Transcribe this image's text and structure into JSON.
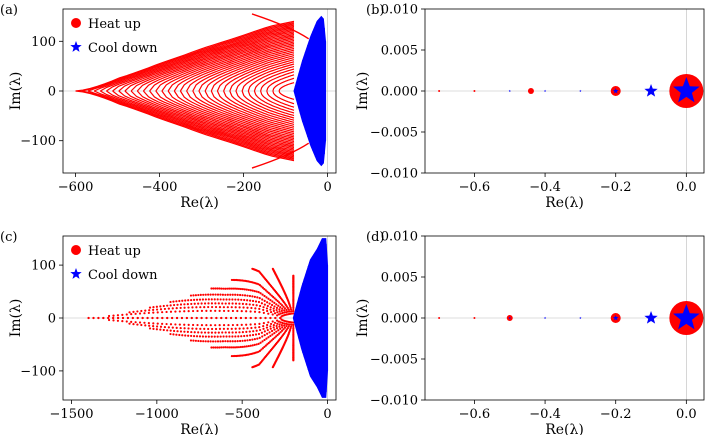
{
  "figure": {
    "panels": [
      {
        "label": "(a)",
        "xlabel": "Re(λ)",
        "ylabel": "Im(λ)",
        "legend": [
          "Heat up",
          "Cool down"
        ]
      },
      {
        "label": "(b)",
        "xlabel": "Re(λ)",
        "ylabel": "Im(λ)"
      },
      {
        "label": "(c)",
        "xlabel": "Re(λ)",
        "ylabel": "Im(λ)",
        "legend": [
          "Heat up",
          "Cool down"
        ]
      },
      {
        "label": "(d)",
        "xlabel": "Re(λ)",
        "ylabel": "Im(λ)"
      }
    ]
  },
  "colors": {
    "heat_up": "#ff0000",
    "cool_down": "#0000ff"
  },
  "chart_data": [
    {
      "panel": "(a)",
      "type": "scatter",
      "xlabel": "Re(λ)",
      "ylabel": "Im(λ)",
      "xlim": [
        -630,
        20
      ],
      "ylim": [
        -165,
        165
      ],
      "xticks": [
        -600,
        -400,
        -200,
        0
      ],
      "yticks": [
        -100,
        0,
        100
      ],
      "legend_position": "top-left",
      "series": [
        {
          "name": "Heat up",
          "marker": "circle",
          "envelope": {
            "tip_re": -600,
            "upper_re": [
              -600,
              -500,
              -400,
              -300,
              -200,
              -140,
              -80
            ],
            "upper_im": [
              0,
              57,
              89,
              112,
              128,
              138,
              140
            ]
          }
        },
        {
          "name": "Cool down",
          "marker": "star",
          "envelope": {
            "re": [
              -80,
              -60,
              -40,
              -25,
              -15,
              -10,
              -5
            ],
            "im": [
              0,
              60,
              110,
              140,
              150,
              145,
              100
            ]
          }
        }
      ]
    },
    {
      "panel": "(b)",
      "type": "scatter",
      "xlabel": "Re(λ)",
      "ylabel": "Im(λ)",
      "xlim": [
        -0.74,
        0.05
      ],
      "ylim": [
        -0.01,
        0.01
      ],
      "xticks": [
        -0.6,
        -0.4,
        -0.2,
        0.0
      ],
      "yticks": [
        -0.01,
        -0.005,
        0.0,
        0.005,
        0.01
      ],
      "series": [
        {
          "name": "Heat up",
          "x": [
            0.0,
            -0.2,
            -0.44,
            -0.6,
            -0.7
          ],
          "y": [
            0,
            0,
            0,
            0,
            0
          ],
          "size": [
            "large",
            "medium",
            "small",
            "tiny",
            "tiny"
          ]
        },
        {
          "name": "Cool down",
          "x": [
            0.0,
            -0.1,
            -0.2,
            -0.3,
            -0.4,
            -0.5
          ],
          "y": [
            0,
            0,
            0,
            0,
            0,
            0
          ],
          "size": [
            "large",
            "medium",
            "small",
            "tiny",
            "tiny",
            "tiny"
          ]
        }
      ]
    },
    {
      "panel": "(c)",
      "type": "scatter",
      "xlabel": "Re(λ)",
      "ylabel": "Im(λ)",
      "xlim": [
        -1550,
        50
      ],
      "ylim": [
        -155,
        155
      ],
      "xticks": [
        -1500,
        -1000,
        -500,
        0
      ],
      "yticks": [
        -100,
        0,
        100
      ],
      "legend_position": "top-left",
      "series": [
        {
          "name": "Heat up",
          "marker": "circle",
          "envelope": {
            "tip_re": -1400,
            "upper_re": [
              -1400,
              -1200,
              -1000,
              -800,
              -600,
              -400,
              -200
            ],
            "upper_im": [
              0,
              20,
              40,
              60,
              80,
              110,
              80
            ]
          }
        },
        {
          "name": "Cool down",
          "marker": "star",
          "envelope": {
            "re": [
              -200,
              -150,
              -100,
              -60,
              -30,
              -10,
              0
            ],
            "im": [
              0,
              60,
              110,
              130,
              150,
              150,
              100
            ]
          }
        }
      ]
    },
    {
      "panel": "(d)",
      "type": "scatter",
      "xlabel": "Re(λ)",
      "ylabel": "Im(λ)",
      "xlim": [
        -0.74,
        0.05
      ],
      "ylim": [
        -0.01,
        0.01
      ],
      "xticks": [
        -0.6,
        -0.4,
        -0.2,
        0.0
      ],
      "yticks": [
        -0.01,
        -0.005,
        0.0,
        0.005,
        0.01
      ],
      "series": [
        {
          "name": "Heat up",
          "x": [
            0.0,
            -0.2,
            -0.5,
            -0.6,
            -0.7
          ],
          "y": [
            0,
            0,
            0,
            0,
            0
          ],
          "size": [
            "large",
            "medium",
            "small",
            "tiny",
            "tiny"
          ]
        },
        {
          "name": "Cool down",
          "x": [
            0.0,
            -0.1,
            -0.2,
            -0.3,
            -0.4,
            -0.5
          ],
          "y": [
            0,
            0,
            0,
            0,
            0,
            0
          ],
          "size": [
            "large",
            "medium",
            "small",
            "tiny",
            "tiny",
            "tiny"
          ]
        }
      ]
    }
  ]
}
